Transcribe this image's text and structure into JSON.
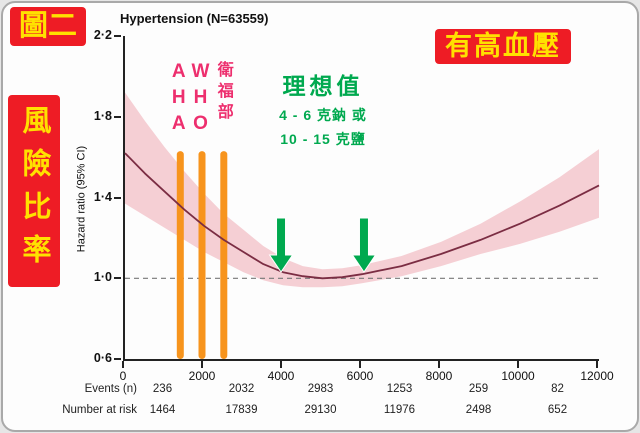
{
  "badges": {
    "figure_label": "圖二",
    "condition_label": "有高血壓",
    "risk_ratio_label": "風險比率"
  },
  "chart_data": {
    "type": "line",
    "title": "Hypertension (N=63559)",
    "xlabel": "",
    "ylabel": "Hazard ratio (95% CI)",
    "xlim": [
      0,
      12000
    ],
    "ylim": [
      0.6,
      2.2
    ],
    "grid": false,
    "legend": "none",
    "reference_line": 1.0,
    "y_ticks": [
      {
        "value": 2.2,
        "label": "2·2"
      },
      {
        "value": 1.8,
        "label": "1·8"
      },
      {
        "value": 1.4,
        "label": "1·4"
      },
      {
        "value": 1.0,
        "label": "1·0"
      },
      {
        "value": 0.6,
        "label": "0·6"
      }
    ],
    "x_ticks": [
      {
        "value": 0,
        "label": "0"
      },
      {
        "value": 2000,
        "label": "2000"
      },
      {
        "value": 4000,
        "label": "4000"
      },
      {
        "value": 6000,
        "label": "6000"
      },
      {
        "value": 8000,
        "label": "8000"
      },
      {
        "value": 10000,
        "label": "10000"
      },
      {
        "value": 12000,
        "label": "12000"
      }
    ],
    "series": [
      {
        "name": "Hazard ratio",
        "x": [
          0,
          500,
          1000,
          1500,
          2000,
          2500,
          3000,
          3500,
          4000,
          4500,
          5000,
          5500,
          6000,
          7000,
          8000,
          9000,
          10000,
          11000,
          12000
        ],
        "y": [
          1.62,
          1.52,
          1.43,
          1.34,
          1.26,
          1.19,
          1.13,
          1.07,
          1.03,
          1.01,
          1.0,
          1.005,
          1.02,
          1.06,
          1.12,
          1.19,
          1.27,
          1.36,
          1.46
        ]
      }
    ],
    "ci_band": {
      "x": [
        0,
        500,
        1000,
        1500,
        2000,
        2500,
        3000,
        3500,
        4000,
        4500,
        5000,
        5500,
        6000,
        7000,
        8000,
        9000,
        10000,
        11000,
        12000
      ],
      "upper": [
        1.92,
        1.78,
        1.65,
        1.53,
        1.42,
        1.32,
        1.24,
        1.16,
        1.1,
        1.06,
        1.045,
        1.05,
        1.065,
        1.11,
        1.18,
        1.27,
        1.38,
        1.5,
        1.64
      ],
      "lower": [
        1.37,
        1.31,
        1.25,
        1.19,
        1.13,
        1.08,
        1.03,
        0.99,
        0.965,
        0.955,
        0.955,
        0.96,
        0.975,
        1.01,
        1.06,
        1.12,
        1.17,
        1.23,
        1.3
      ]
    },
    "table_rows": [
      {
        "key": "events",
        "label": "Events (n)",
        "values": [
          "236",
          "2032",
          "2983",
          "1253",
          "259",
          "82"
        ]
      },
      {
        "key": "at-risk",
        "label": "Number at risk",
        "values": [
          "1464",
          "17839",
          "29130",
          "11976",
          "2498",
          "652"
        ]
      }
    ]
  },
  "annotations": {
    "guidelines": [
      {
        "key": "aha",
        "label": "AHA",
        "x": 1400
      },
      {
        "key": "who",
        "label": "WHO",
        "x": 1950
      },
      {
        "key": "mohw",
        "label": "衛福部",
        "x": 2500
      }
    ],
    "ideal": {
      "title": "理想值",
      "line1": "4 - 6 克鈉 或",
      "line2": "10 - 15 克鹽",
      "arrows_x": [
        3950,
        6050
      ]
    }
  },
  "colors": {
    "badge_bg": "#ee1c25",
    "badge_text": "#ffe100",
    "curve": "#7b2d43",
    "ci_band": "#f5cfd4",
    "guideline_bar": "#f7941d",
    "guideline_text": "#ed2f6e",
    "ideal_green": "#00a94f"
  }
}
